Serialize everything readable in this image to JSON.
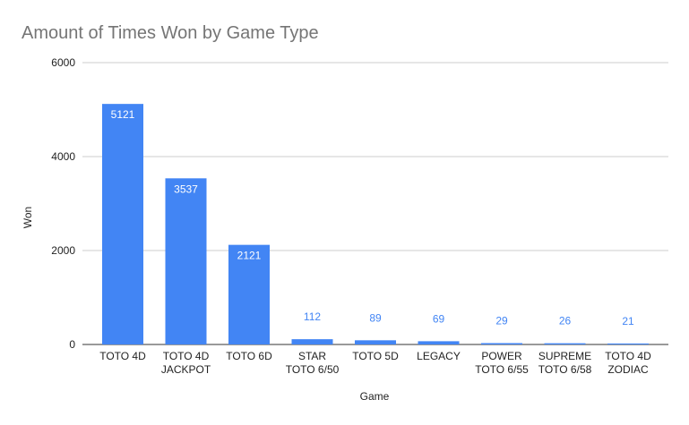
{
  "chart_data": {
    "type": "bar",
    "title": "Amount of Times Won by Game Type",
    "xlabel": "Game",
    "ylabel": "Won",
    "ylim": [
      0,
      6000
    ],
    "yticks": [
      "0",
      "2000",
      "4000",
      "6000"
    ],
    "grid": true,
    "legend": "none",
    "categories": [
      "TOTO 4D",
      "TOTO 4D JACKPOT",
      "TOTO 6D",
      "STAR TOTO  6/50",
      "TOTO 5D",
      "LEGACY",
      "POWER TOTO 6/55",
      "SUPREME TOTO 6/58",
      "TOTO 4D ZODIAC"
    ],
    "category_lines": [
      [
        "TOTO 4D"
      ],
      [
        "TOTO 4D",
        "JACKPOT"
      ],
      [
        "TOTO 6D"
      ],
      [
        "STAR",
        "TOTO  6/50"
      ],
      [
        "TOTO 5D"
      ],
      [
        "LEGACY"
      ],
      [
        "POWER",
        "TOTO 6/55"
      ],
      [
        "SUPREME",
        "TOTO 6/58"
      ],
      [
        "TOTO 4D",
        "ZODIAC"
      ]
    ],
    "values": [
      5121,
      3537,
      2121,
      112,
      89,
      69,
      29,
      26,
      21
    ],
    "colors": {
      "bar": "#4285f4",
      "label_inside": "#ffffff",
      "label_outside": "#4285f4",
      "grid": "#cccccc",
      "baseline": "#333333"
    }
  }
}
